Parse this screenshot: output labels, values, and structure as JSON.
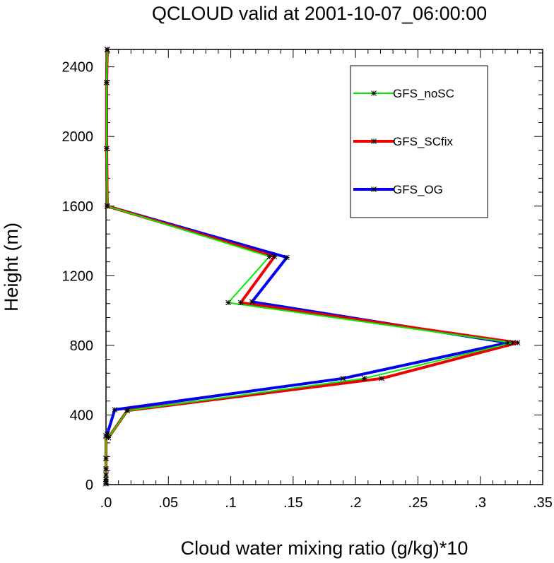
{
  "chart_data": {
    "type": "line",
    "title": "QCLOUD valid at 2001-10-07_06:00:00",
    "xlabel": "Cloud water mixing ratio (g/kg)*10",
    "ylabel": "Height (m)",
    "xlim": [
      0,
      0.35
    ],
    "ylim": [
      0,
      2500
    ],
    "xticks": [
      0,
      0.05,
      0.1,
      0.15,
      0.2,
      0.25,
      0.3,
      0.35
    ],
    "xtick_labels": [
      ".0",
      ".05",
      ".1",
      ".15",
      ".2",
      ".25",
      ".3",
      ".35"
    ],
    "yticks": [
      0,
      400,
      800,
      1200,
      1600,
      2000,
      2400
    ],
    "ytick_labels": [
      "0",
      "400",
      "800",
      "1200",
      "1600",
      "2000",
      "2400"
    ],
    "legend_position": "top-right",
    "grid": false,
    "series": [
      {
        "name": "GFS_noSC",
        "color": "#00ee00",
        "width": 2,
        "x": [
          0,
          0,
          0,
          0,
          0,
          0,
          0,
          0.002,
          0.017,
          0.207,
          0.326,
          0.098,
          0.131,
          0.001,
          0.0005,
          0.0005,
          0.001
        ],
        "y": [
          5,
          15,
          30,
          55,
          90,
          150,
          280,
          270,
          425,
          610,
          815,
          1045,
          1310,
          1600,
          1930,
          2310,
          2500
        ]
      },
      {
        "name": "GFS_SCfix",
        "color": "#ee0000",
        "width": 4,
        "x": [
          0,
          0,
          0,
          0,
          0,
          0,
          0,
          0.002,
          0.017,
          0.221,
          0.33,
          0.108,
          0.135,
          0.001,
          0.0005,
          0.0005,
          0.001
        ],
        "y": [
          5,
          15,
          30,
          55,
          90,
          150,
          280,
          270,
          425,
          610,
          815,
          1045,
          1310,
          1600,
          1930,
          2310,
          2500
        ]
      },
      {
        "name": "GFS_OG",
        "color": "#0000ee",
        "width": 4,
        "x": [
          0,
          0,
          0,
          0,
          0,
          0,
          0,
          0.001,
          0.007,
          0.19,
          0.322,
          0.117,
          0.145,
          0.001,
          0.0005,
          0.0005,
          0.001
        ],
        "y": [
          5,
          15,
          30,
          55,
          90,
          150,
          280,
          290,
          430,
          610,
          815,
          1050,
          1305,
          1600,
          1930,
          2310,
          2500
        ]
      }
    ]
  }
}
